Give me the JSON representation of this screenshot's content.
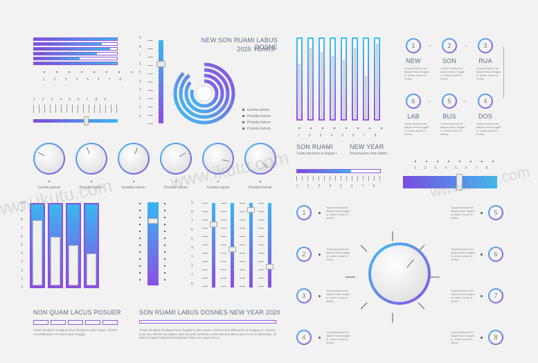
{
  "block1": {
    "bars": [
      1.0,
      0.82,
      0.92,
      0.76,
      0.55,
      1.0
    ],
    "scale_top": [
      "1",
      "2",
      "3",
      "4",
      "5",
      "6",
      "7",
      "8"
    ],
    "scale_mid": [
      "1",
      "2",
      "3",
      "4",
      "5",
      "6",
      "7",
      "8",
      "9"
    ],
    "slider_value": 0.62
  },
  "concentric": {
    "title_line1": "NEW SON RUAMI LABUS DOSNE",
    "title_line2": "2025 YEARS",
    "axis": [
      "9",
      "8",
      "7",
      "6",
      "5",
      "4",
      "3",
      "2",
      "1",
      "0"
    ],
    "slider_value": 0.7,
    "legend": [
      "Uavida sutrum",
      "Pravida hutrum",
      "Pravida hutrum",
      "Pravida hutrum"
    ]
  },
  "columns": {
    "fills": [
      0.7,
      0.9,
      0.85,
      0.8,
      0.75,
      0.9,
      0.55,
      0.95
    ],
    "axis": [
      "1",
      "2",
      "3",
      "4",
      "5",
      "6",
      "7",
      "8"
    ],
    "left_title": "SON RUAMI",
    "left_text": "Turpis tincidunt et aliquet i.",
    "right_title": "NEW YEAR",
    "right_text": "Viivamuserru felis bilibm."
  },
  "flow": {
    "steps": [
      {
        "num": "1",
        "label": "NEW"
      },
      {
        "num": "2",
        "label": "SON"
      },
      {
        "num": "3",
        "label": "RUA"
      },
      {
        "num": "6",
        "label": "LAB"
      },
      {
        "num": "5",
        "label": "BUS"
      },
      {
        "num": "4",
        "label": "DOS"
      }
    ],
    "desc": "Turpis tincidunt sit aliquet risuis feugiat in, anteo vector is metus."
  },
  "knobs": {
    "labels": [
      "Uavida sutrum",
      "Pravida hutrum",
      "Eravida nutrum",
      "Pravida hutrum",
      "Travida nutrum",
      "Pravida hutrum"
    ]
  },
  "bargroup": {
    "fills": [
      0.8,
      0.6,
      0.5,
      0.4
    ],
    "axis": [
      "10",
      "9",
      "8",
      "7",
      "6",
      "5",
      "4",
      "3",
      "2",
      "1",
      "0"
    ],
    "title": "NON QUAM LACUS POSUER",
    "text": "Turpis tincidunt sit aliquet risus feugiat in ante metus. Viverra urna bibendum et ullamcorper feugiat."
  },
  "sliders": {
    "axis": [
      "9",
      "8",
      "7",
      "6",
      "5",
      "4",
      "3",
      "2",
      "1",
      "0"
    ],
    "single": 0.8,
    "multi": [
      0.75,
      0.45,
      0.92,
      0.25
    ],
    "title": "SON RUAMI LABUS DOSNES NEW YEAR 2020",
    "text": "Turpis tincidunt sit aliquet risus feugiat in ante metus. Viverra urna bibendum et tristique et. Viverra justo nec ultrices dui sapien eget mi proin sed libero enim sed faucibus turpis in eu mi bibendum. Id diam vel quam elementum pulvinar etiam non quam lacus."
  },
  "toprightslider": {
    "axis": [
      "1",
      "2",
      "3",
      "4",
      "5",
      "6",
      "7",
      "8"
    ],
    "value": 0.55
  },
  "dial": {
    "left": [
      "1",
      "2",
      "3",
      "4"
    ],
    "right": [
      "5",
      "6",
      "7",
      "8"
    ],
    "desc": "Turpis tincidunt sit aliquet risus feugiat in, anteo vector is metus."
  },
  "watermark": "www.ikutu.com"
}
